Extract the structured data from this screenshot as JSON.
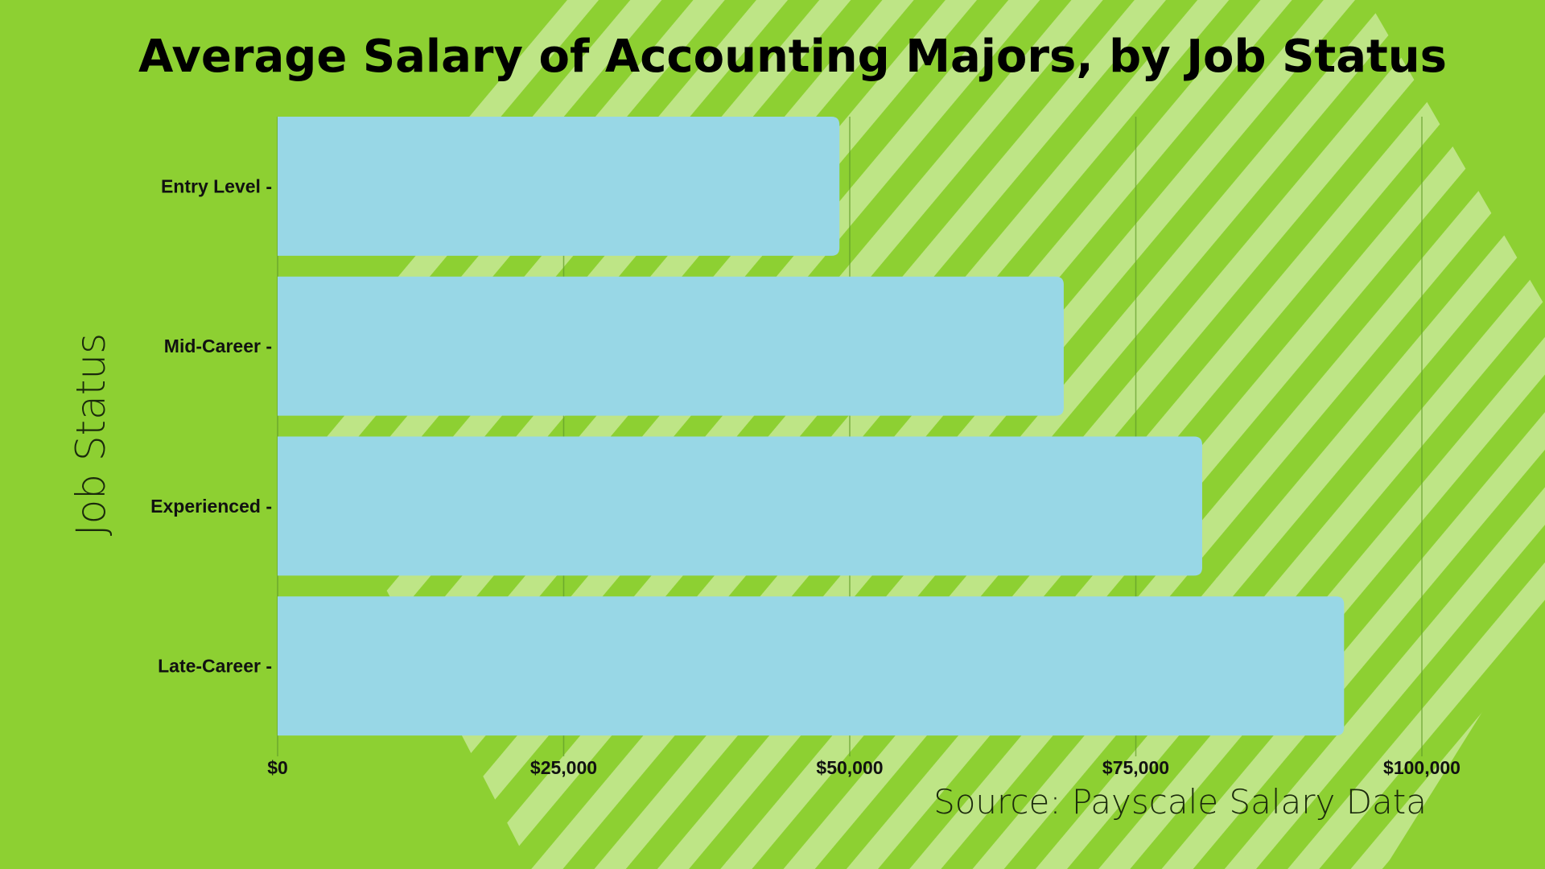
{
  "chart_data": {
    "type": "bar",
    "orientation": "horizontal",
    "title": "Average Salary of Accounting Majors, by Job Status",
    "ylabel": "Job Status",
    "xlabel": "",
    "categories": [
      "Entry Level",
      "Mid-Career",
      "Experienced",
      "Late-Career"
    ],
    "category_tick_labels": [
      "Entry Level -",
      "Mid-Career -",
      "Experienced -",
      "Late-Career -"
    ],
    "values": [
      49100,
      68700,
      80800,
      93200
    ],
    "xlim": [
      0,
      100000
    ],
    "x_ticks": [
      0,
      25000,
      50000,
      75000,
      100000
    ],
    "x_tick_labels": [
      "$0",
      "$25,000",
      "$50,000",
      "$75,000",
      "$100,000"
    ],
    "grid": "vertical",
    "source": "Source: Payscale Salary Data"
  },
  "colors": {
    "background": "#8dd032",
    "stripes": "#c2e78d",
    "bar": "#98d7e6",
    "gridline": "#5f9a2a"
  }
}
